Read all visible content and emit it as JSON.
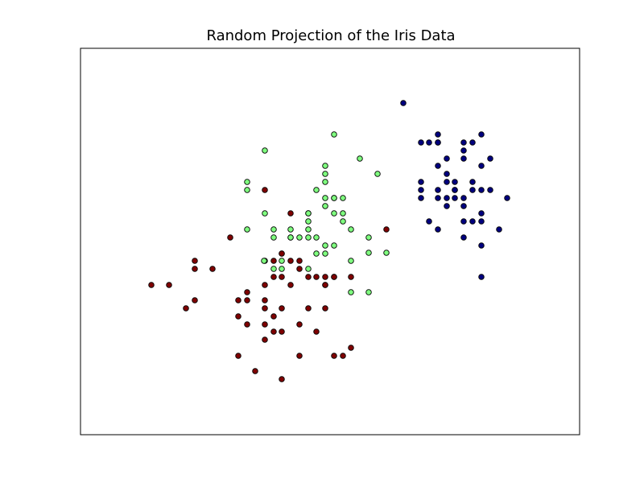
{
  "chart_data": {
    "type": "scatter",
    "title": "Random Projection of the Iris Data",
    "xlabel": "",
    "ylabel": "",
    "xlim": [
      0,
      620
    ],
    "ylim": [
      0,
      480
    ],
    "grid": false,
    "ticks_visible": false,
    "series": [
      {
        "color": "#00007f",
        "points": [
          [
            401,
            412
          ],
          [
            423,
            363
          ],
          [
            433,
            363
          ],
          [
            444,
            363
          ],
          [
            444,
            373
          ],
          [
            444,
            363
          ],
          [
            444,
            334
          ],
          [
            455,
            343
          ],
          [
            455,
            324
          ],
          [
            465,
            304
          ],
          [
            476,
            353
          ],
          [
            476,
            363
          ],
          [
            476,
            343
          ],
          [
            487,
            363
          ],
          [
            498,
            373
          ],
          [
            498,
            334
          ],
          [
            509,
            343
          ],
          [
            423,
            304
          ],
          [
            423,
            314
          ],
          [
            423,
            294
          ],
          [
            444,
            304
          ],
          [
            444,
            294
          ],
          [
            455,
            314
          ],
          [
            455,
            294
          ],
          [
            455,
            284
          ],
          [
            465,
            314
          ],
          [
            465,
            304
          ],
          [
            465,
            294
          ],
          [
            476,
            294
          ],
          [
            476,
            284
          ],
          [
            487,
            314
          ],
          [
            487,
            304
          ],
          [
            498,
            304
          ],
          [
            509,
            304
          ],
          [
            530,
            294
          ],
          [
            433,
            265
          ],
          [
            444,
            255
          ],
          [
            476,
            265
          ],
          [
            487,
            265
          ],
          [
            498,
            275
          ],
          [
            498,
            265
          ],
          [
            498,
            235
          ],
          [
            520,
            255
          ],
          [
            476,
            245
          ],
          [
            498,
            196
          ]
        ]
      },
      {
        "color": "#7fff7f",
        "points": [
          [
            315,
            373
          ],
          [
            229,
            353
          ],
          [
            347,
            343
          ],
          [
            369,
            324
          ],
          [
            304,
            334
          ],
          [
            304,
            324
          ],
          [
            304,
            314
          ],
          [
            293,
            304
          ],
          [
            304,
            294
          ],
          [
            315,
            294
          ],
          [
            326,
            294
          ],
          [
            207,
            314
          ],
          [
            207,
            304
          ],
          [
            229,
            275
          ],
          [
            283,
            275
          ],
          [
            283,
            265
          ],
          [
            283,
            255
          ],
          [
            326,
            275
          ],
          [
            326,
            265
          ],
          [
            315,
            294
          ],
          [
            240,
            255
          ],
          [
            240,
            245
          ],
          [
            261,
            255
          ],
          [
            261,
            245
          ],
          [
            283,
            245
          ],
          [
            293,
            245
          ],
          [
            304,
            235
          ],
          [
            315,
            235
          ],
          [
            207,
            255
          ],
          [
            336,
            255
          ],
          [
            358,
            245
          ],
          [
            358,
            226
          ],
          [
            380,
            226
          ],
          [
            250,
            216
          ],
          [
            229,
            216
          ],
          [
            240,
            206
          ],
          [
            250,
            206
          ],
          [
            283,
            206
          ],
          [
            261,
            245
          ],
          [
            283,
            275
          ],
          [
            315,
            275
          ],
          [
            304,
            284
          ],
          [
            315,
            196
          ],
          [
            336,
            216
          ],
          [
            304,
            186
          ],
          [
            293,
            225
          ],
          [
            304,
            225
          ],
          [
            272,
            245
          ],
          [
            336,
            177
          ],
          [
            358,
            177
          ],
          [
            228,
            216
          ],
          [
            250,
            225
          ]
        ]
      },
      {
        "color": "#7f0000",
        "points": [
          [
            229,
            304
          ],
          [
            261,
            275
          ],
          [
            380,
            255
          ],
          [
            186,
            245
          ],
          [
            250,
            225
          ],
          [
            304,
            186
          ],
          [
            261,
            216
          ],
          [
            272,
            216
          ],
          [
            240,
            216
          ],
          [
            250,
            196
          ],
          [
            272,
            206
          ],
          [
            283,
            196
          ],
          [
            293,
            196
          ],
          [
            304,
            196
          ],
          [
            315,
            196
          ],
          [
            336,
            196
          ],
          [
            261,
            186
          ],
          [
            207,
            167
          ],
          [
            229,
            167
          ],
          [
            196,
            167
          ],
          [
            229,
            157
          ],
          [
            250,
            157
          ],
          [
            283,
            157
          ],
          [
            304,
            157
          ],
          [
            240,
            147
          ],
          [
            229,
            137
          ],
          [
            272,
            137
          ],
          [
            293,
            128
          ],
          [
            250,
            128
          ],
          [
            240,
            128
          ],
          [
            229,
            118
          ],
          [
            142,
            216
          ],
          [
            164,
            206
          ],
          [
            142,
            206
          ],
          [
            110,
            186
          ],
          [
            88,
            186
          ],
          [
            196,
            98
          ],
          [
            217,
            79
          ],
          [
            250,
            69
          ],
          [
            272,
            98
          ],
          [
            315,
            98
          ],
          [
            326,
            98
          ],
          [
            336,
            108
          ],
          [
            131,
            157
          ],
          [
            142,
            167
          ],
          [
            207,
            177
          ],
          [
            229,
            186
          ],
          [
            240,
            196
          ],
          [
            196,
            147
          ],
          [
            207,
            137
          ]
        ]
      }
    ]
  }
}
